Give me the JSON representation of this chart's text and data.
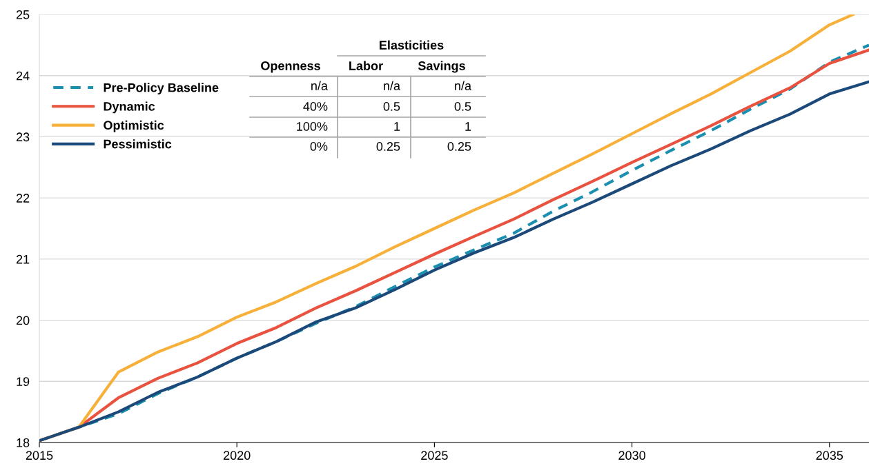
{
  "chart_data": {
    "type": "line",
    "x": [
      2015,
      2016,
      2017,
      2018,
      2019,
      2020,
      2021,
      2022,
      2023,
      2024,
      2025,
      2026,
      2027,
      2028,
      2029,
      2030,
      2031,
      2032,
      2033,
      2034,
      2035,
      2036
    ],
    "series": [
      {
        "name": "Pre-Policy Baseline",
        "color": "#1a8fb0",
        "line_style": "dashed",
        "values": [
          18.03,
          18.25,
          18.47,
          18.8,
          19.07,
          19.38,
          19.65,
          19.95,
          20.22,
          20.55,
          20.87,
          21.15,
          21.42,
          21.78,
          22.1,
          22.45,
          22.78,
          23.1,
          23.45,
          23.78,
          24.22,
          24.5
        ]
      },
      {
        "name": "Dynamic",
        "color": "#e8523f",
        "values": [
          18.03,
          18.25,
          18.73,
          19.05,
          19.3,
          19.62,
          19.88,
          20.2,
          20.48,
          20.78,
          21.08,
          21.37,
          21.65,
          21.97,
          22.27,
          22.58,
          22.88,
          23.18,
          23.5,
          23.8,
          24.2,
          24.42
        ]
      },
      {
        "name": "Optimistic",
        "color": "#f7b039",
        "x": [
          2015,
          2016,
          2017,
          2018,
          2019,
          2020,
          2021,
          2022,
          2023,
          2024,
          2025,
          2026,
          2027,
          2028,
          2029,
          2030,
          2031,
          2032,
          2033,
          2034,
          2035,
          2035.6
        ],
        "values": [
          18.03,
          18.25,
          19.15,
          19.48,
          19.73,
          20.05,
          20.3,
          20.6,
          20.88,
          21.2,
          21.5,
          21.8,
          22.08,
          22.4,
          22.72,
          23.05,
          23.38,
          23.7,
          24.05,
          24.4,
          24.83,
          25.0
        ]
      },
      {
        "name": "Pessimistic",
        "color": "#1b4a7a",
        "values": [
          18.03,
          18.25,
          18.5,
          18.82,
          19.07,
          19.38,
          19.65,
          19.97,
          20.2,
          20.5,
          20.82,
          21.1,
          21.35,
          21.65,
          21.93,
          22.23,
          22.53,
          22.8,
          23.1,
          23.37,
          23.7,
          23.9
        ]
      }
    ],
    "xlim": [
      2015,
      2036
    ],
    "xticks": [
      2015,
      2020,
      2025,
      2030,
      2035
    ],
    "ylim": [
      18,
      25
    ],
    "yticks": [
      18,
      19,
      20,
      21,
      22,
      23,
      24,
      25
    ],
    "grid": "y",
    "legend": "top left",
    "line_style": "solid",
    "marker": "none",
    "annotations": [
      "Elasticities",
      "Openness",
      "Labor",
      "Savings",
      "n/a",
      "n/a",
      "n/a",
      "40%",
      "0.5",
      "0.5",
      "100%",
      "1",
      "1",
      "0%",
      "0.25",
      "0.25"
    ]
  }
}
